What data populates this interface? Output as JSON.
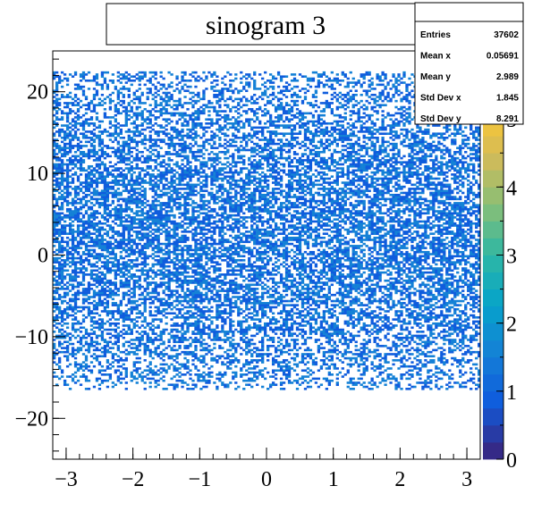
{
  "chart_data": {
    "type": "heatmap",
    "title": "sinogram 3",
    "xlabel": "",
    "ylabel": "",
    "xlim": [
      -3.2,
      3.2
    ],
    "ylim": [
      -25,
      25
    ],
    "x_ticks": [
      -3,
      -2,
      -1,
      0,
      1,
      2,
      3
    ],
    "y_ticks": [
      -20,
      -10,
      0,
      10,
      20
    ],
    "x_tick_labels": [
      "−3",
      "−2",
      "−1",
      "0",
      "1",
      "2",
      "3"
    ],
    "y_tick_labels": [
      "−20",
      "−10",
      "0",
      "10",
      "20"
    ],
    "z_range": [
      0,
      6
    ],
    "z_ticks": [
      0,
      1,
      2,
      3,
      4,
      5
    ],
    "z_tick_labels": [
      "0",
      "1",
      "2",
      "3",
      "4",
      "5"
    ],
    "band_y_range": [
      -16.5,
      22.5
    ],
    "band_center_y": 3,
    "grid": false,
    "stats": {
      "rows": [
        {
          "label": "Entries",
          "value": "37602"
        },
        {
          "label": "Mean x",
          "value": "0.05691"
        },
        {
          "label": "Mean y",
          "value": "2.989"
        },
        {
          "label": "Std Dev x",
          "value": "1.845"
        },
        {
          "label": "Std Dev y",
          "value": "8.291"
        }
      ]
    },
    "colors": {
      "palette": [
        "#352a87",
        "#0f5cdd",
        "#1481d6",
        "#06a4ca",
        "#2eb7a4",
        "#87bf77",
        "#d1bb59",
        "#fec832",
        "#f9fb0e"
      ]
    }
  }
}
